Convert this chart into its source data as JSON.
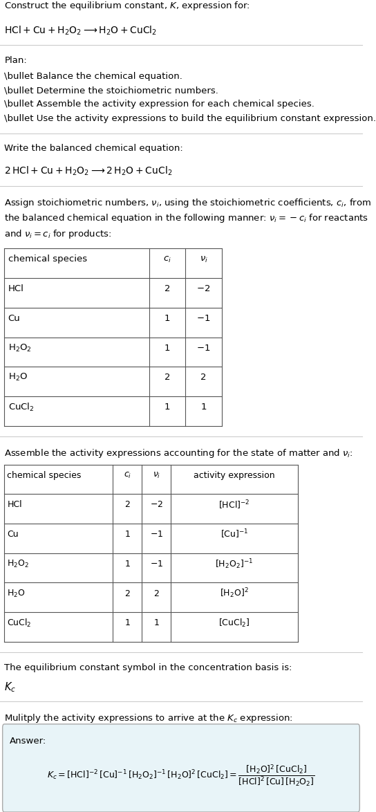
{
  "title_line1": "Construct the equilibrium constant, $K$, expression for:",
  "title_line2": "$\\text{HCl} + \\text{Cu} + \\text{H}_2\\text{O}_2 \\longrightarrow \\text{H}_2\\text{O} + \\text{CuCl}_2$",
  "plan_header": "Plan:",
  "plan_bullets": [
    "\\bullet Balance the chemical equation.",
    "\\bullet Determine the stoichiometric numbers.",
    "\\bullet Assemble the activity expression for each chemical species.",
    "\\bullet Use the activity expressions to build the equilibrium constant expression."
  ],
  "balanced_header": "Write the balanced chemical equation:",
  "balanced_eq": "$2\\,\\text{HCl} + \\text{Cu} + \\text{H}_2\\text{O}_2 \\longrightarrow 2\\,\\text{H}_2\\text{O} + \\text{CuCl}_2$",
  "stoich_header": "Assign stoichiometric numbers, $\\nu_i$, using the stoichiometric coefficients, $c_i$, from\nthe balanced chemical equation in the following manner: $\\nu_i = -c_i$ for reactants\nand $\\nu_i = c_i$ for products:",
  "table1_headers": [
    "chemical species",
    "$c_i$",
    "$\\nu_i$"
  ],
  "table1_rows": [
    [
      "HCl",
      "2",
      "$-2$"
    ],
    [
      "Cu",
      "1",
      "$-1$"
    ],
    [
      "$\\text{H}_2\\text{O}_2$",
      "1",
      "$-1$"
    ],
    [
      "$\\text{H}_2\\text{O}$",
      "2",
      "2"
    ],
    [
      "$\\text{CuCl}_2$",
      "1",
      "1"
    ]
  ],
  "activity_header": "Assemble the activity expressions accounting for the state of matter and $\\nu_i$:",
  "table2_headers": [
    "chemical species",
    "$c_i$",
    "$\\nu_i$",
    "activity expression"
  ],
  "table2_rows": [
    [
      "HCl",
      "2",
      "$-2$",
      "$[\\text{HCl}]^{-2}$"
    ],
    [
      "Cu",
      "1",
      "$-1$",
      "$[\\text{Cu}]^{-1}$"
    ],
    [
      "$\\text{H}_2\\text{O}_2$",
      "1",
      "$-1$",
      "$[\\text{H}_2\\text{O}_2]^{-1}$"
    ],
    [
      "$\\text{H}_2\\text{O}$",
      "2",
      "2",
      "$[\\text{H}_2\\text{O}]^{2}$"
    ],
    [
      "$\\text{CuCl}_2$",
      "1",
      "1",
      "$[\\text{CuCl}_2]$"
    ]
  ],
  "kc_header": "The equilibrium constant symbol in the concentration basis is:",
  "kc_symbol": "$K_c$",
  "multiply_header": "Mulitply the activity expressions to arrive at the $K_c$ expression:",
  "answer_label": "Answer:",
  "answer_eq": "$K_c = [\\text{HCl}]^{-2}\\,[\\text{Cu}]^{-1}\\,[\\text{H}_2\\text{O}_2]^{-1}\\,[\\text{H}_2\\text{O}]^{2}\\,[\\text{CuCl}_2] = \\dfrac{[\\text{H}_2\\text{O}]^{2}\\,[\\text{CuCl}_2]}{[\\text{HCl}]^{2}\\,[\\text{Cu}]\\,[\\text{H}_2\\text{O}_2]}$",
  "bg_color": "#ffffff",
  "text_color": "#000000",
  "table_header_bg": "#ffffff",
  "separator_color": "#aaaaaa",
  "answer_box_bg": "#e8f4f8",
  "answer_box_border": "#aaaaaa",
  "font_size": 9.5,
  "small_font": 8.5
}
